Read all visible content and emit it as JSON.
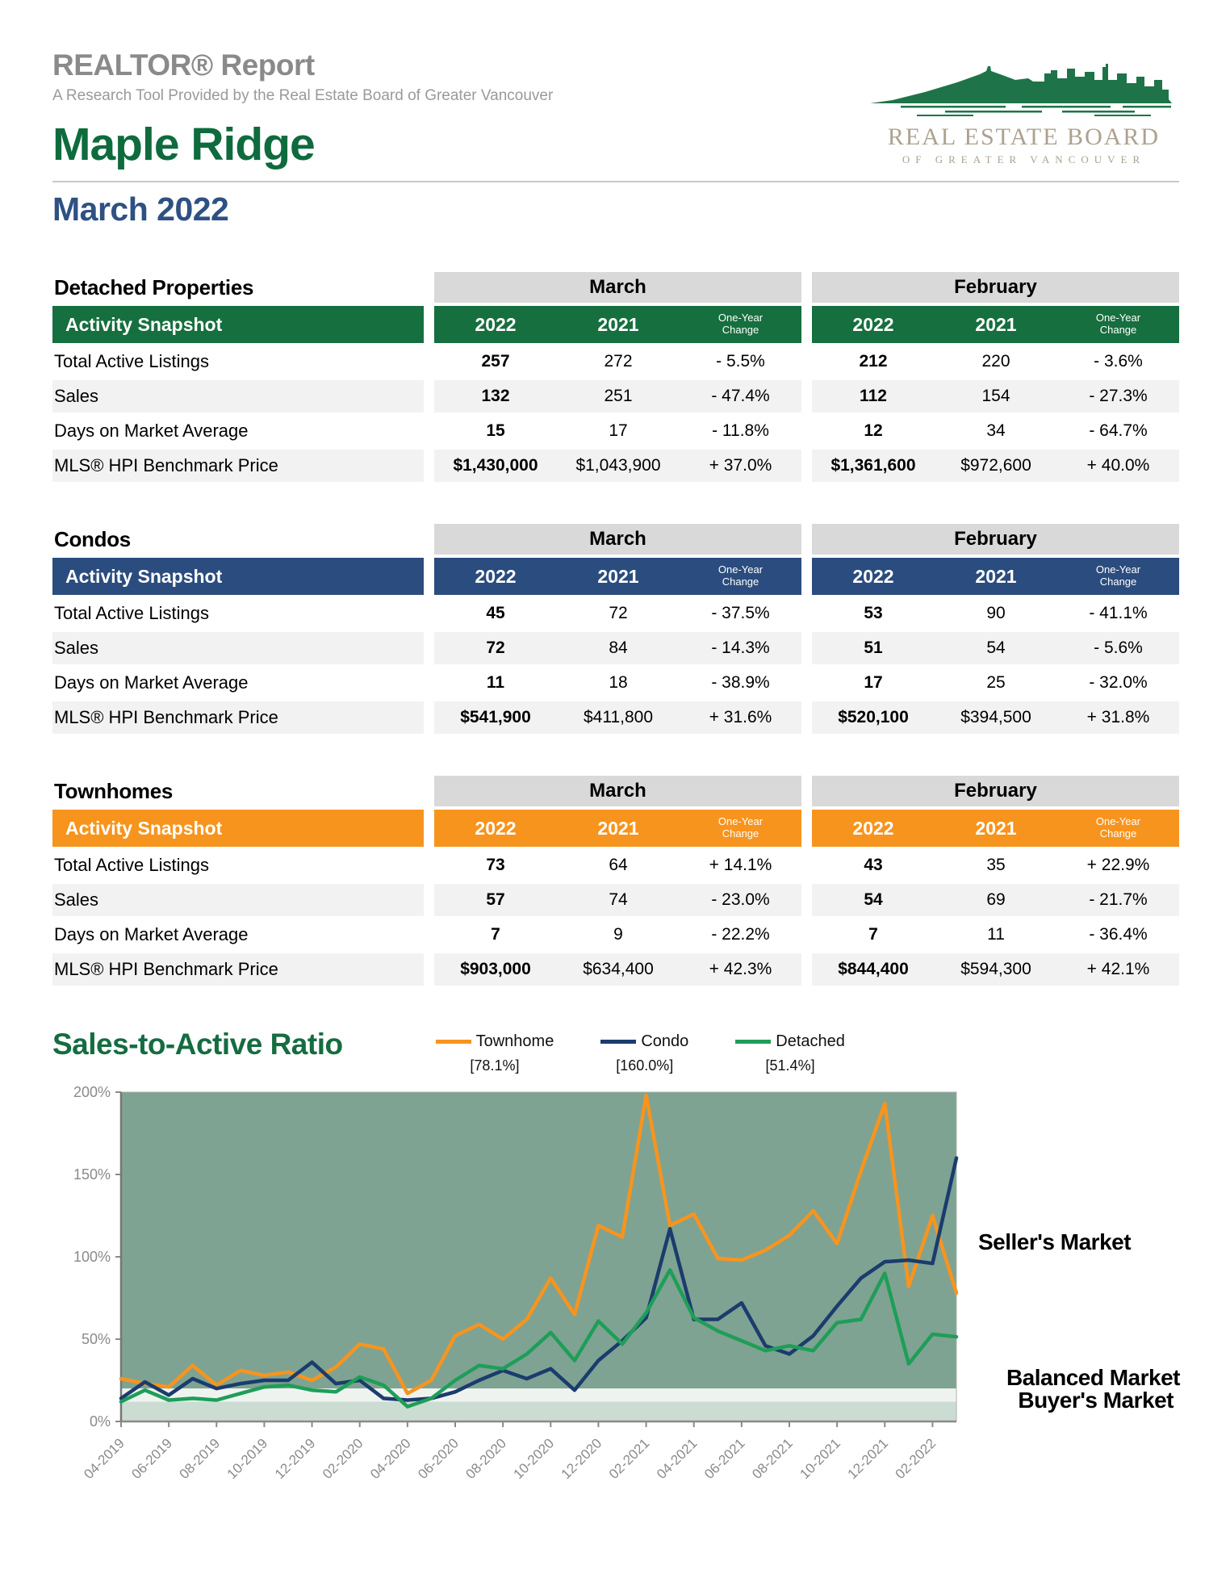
{
  "header": {
    "report_title": "REALTOR® Report",
    "subtitle": "A Research Tool Provided by the Real Estate Board of Greater Vancouver",
    "area": "Maple Ridge",
    "month": "March 2022"
  },
  "logo": {
    "board_name": "REAL ESTATE BOARD",
    "board_sub": "OF GREATER VANCOUVER",
    "skyline_color": "#1e7448",
    "text_color": "#ada190"
  },
  "tables": [
    {
      "title": "Detached Properties",
      "accent": "#166f3e",
      "snapshot_label": "Activity Snapshot",
      "month_groups": [
        "March",
        "February"
      ],
      "columns": [
        "2022",
        "2021",
        "One-Year Change"
      ],
      "rows": [
        {
          "label": "Total Active Listings",
          "values": [
            "257",
            "272",
            "- 5.5%",
            "212",
            "220",
            "- 3.6%"
          ]
        },
        {
          "label": "Sales",
          "values": [
            "132",
            "251",
            "- 47.4%",
            "112",
            "154",
            "- 27.3%"
          ]
        },
        {
          "label": "Days on Market Average",
          "values": [
            "15",
            "17",
            "- 11.8%",
            "12",
            "34",
            "- 64.7%"
          ]
        },
        {
          "label": "MLS® HPI Benchmark Price",
          "values": [
            "$1,430,000",
            "$1,043,900",
            "+ 37.0%",
            "$1,361,600",
            "$972,600",
            "+ 40.0%"
          ]
        }
      ]
    },
    {
      "title": "Condos",
      "accent": "#2b4c7e",
      "snapshot_label": "Activity Snapshot",
      "month_groups": [
        "March",
        "February"
      ],
      "columns": [
        "2022",
        "2021",
        "One-Year Change"
      ],
      "rows": [
        {
          "label": "Total Active Listings",
          "values": [
            "45",
            "72",
            "- 37.5%",
            "53",
            "90",
            "- 41.1%"
          ]
        },
        {
          "label": "Sales",
          "values": [
            "72",
            "84",
            "- 14.3%",
            "51",
            "54",
            "- 5.6%"
          ]
        },
        {
          "label": "Days on Market Average",
          "values": [
            "11",
            "18",
            "- 38.9%",
            "17",
            "25",
            "- 32.0%"
          ]
        },
        {
          "label": "MLS® HPI Benchmark Price",
          "values": [
            "$541,900",
            "$411,800",
            "+ 31.6%",
            "$520,100",
            "$394,500",
            "+ 31.8%"
          ]
        }
      ]
    },
    {
      "title": "Townhomes",
      "accent": "#f7941d",
      "snapshot_label": "Activity Snapshot",
      "month_groups": [
        "March",
        "February"
      ],
      "columns": [
        "2022",
        "2021",
        "One-Year Change"
      ],
      "rows": [
        {
          "label": "Total Active Listings",
          "values": [
            "73",
            "64",
            "+ 14.1%",
            "43",
            "35",
            "+ 22.9%"
          ]
        },
        {
          "label": "Sales",
          "values": [
            "57",
            "74",
            "- 23.0%",
            "54",
            "69",
            "- 21.7%"
          ]
        },
        {
          "label": "Days on Market Average",
          "values": [
            "7",
            "9",
            "- 22.2%",
            "7",
            "11",
            "- 36.4%"
          ]
        },
        {
          "label": "MLS® HPI Benchmark Price",
          "values": [
            "$903,000",
            "$634,400",
            "+ 42.3%",
            "$844,400",
            "$594,300",
            "+ 42.1%"
          ]
        }
      ]
    }
  ],
  "chart_data": {
    "type": "line",
    "title": "Sales-to-Active Ratio",
    "x": [
      "04-2019",
      "05-2019",
      "06-2019",
      "07-2019",
      "08-2019",
      "09-2019",
      "10-2019",
      "11-2019",
      "12-2019",
      "01-2020",
      "02-2020",
      "03-2020",
      "04-2020",
      "05-2020",
      "06-2020",
      "07-2020",
      "08-2020",
      "09-2020",
      "10-2020",
      "11-2020",
      "12-2020",
      "01-2021",
      "02-2021",
      "03-2021",
      "04-2021",
      "05-2021",
      "06-2021",
      "07-2021",
      "08-2021",
      "09-2021",
      "10-2021",
      "11-2021",
      "12-2021",
      "01-2022",
      "02-2022",
      "03-2022"
    ],
    "x_labeled_every": 2,
    "series": [
      {
        "name": "Townhome",
        "current_label": "[78.1%]",
        "color": "#f7941e",
        "values": [
          26,
          23,
          21,
          34,
          22,
          31,
          28,
          30,
          25,
          33,
          47,
          44,
          17,
          25,
          52,
          59,
          50,
          62,
          87,
          65,
          119,
          112,
          198,
          119,
          126,
          99,
          98,
          104,
          113,
          128,
          108,
          152,
          193,
          82,
          125,
          78.1
        ]
      },
      {
        "name": "Condo",
        "current_label": "[160.0%]",
        "color": "#1b3c6d",
        "values": [
          14,
          24,
          16,
          26,
          20,
          23,
          25,
          25,
          36,
          23,
          25,
          14,
          13,
          14,
          18,
          25,
          31,
          26,
          32,
          19,
          37,
          49,
          63,
          117,
          62,
          62,
          72,
          46,
          41,
          52,
          70,
          87,
          97,
          98,
          96,
          160
        ]
      },
      {
        "name": "Detached",
        "current_label": "[51.4%]",
        "color": "#1e9e58",
        "values": [
          12,
          19,
          13,
          14,
          13,
          17,
          21,
          22,
          19,
          18,
          27,
          22,
          9,
          14,
          25,
          34,
          32,
          41,
          54,
          37,
          61,
          47,
          66,
          92,
          63,
          55,
          49,
          43,
          46,
          43,
          60,
          62,
          90,
          35,
          53,
          51.4
        ]
      }
    ],
    "ylim": [
      0,
      200
    ],
    "yticks": [
      0,
      50,
      100,
      150,
      200
    ],
    "ytick_suffix": "%",
    "grid": false,
    "legend_position": "top",
    "zones": [
      {
        "label": "Seller's Market",
        "from": 20,
        "to": 200,
        "color": "#7ea392"
      },
      {
        "label": "Balanced Market",
        "from": 12,
        "to": 20,
        "color": "#eff3f0"
      },
      {
        "label": "Buyer's Market",
        "from": 0,
        "to": 12,
        "color": "#cbdcd2"
      }
    ]
  }
}
